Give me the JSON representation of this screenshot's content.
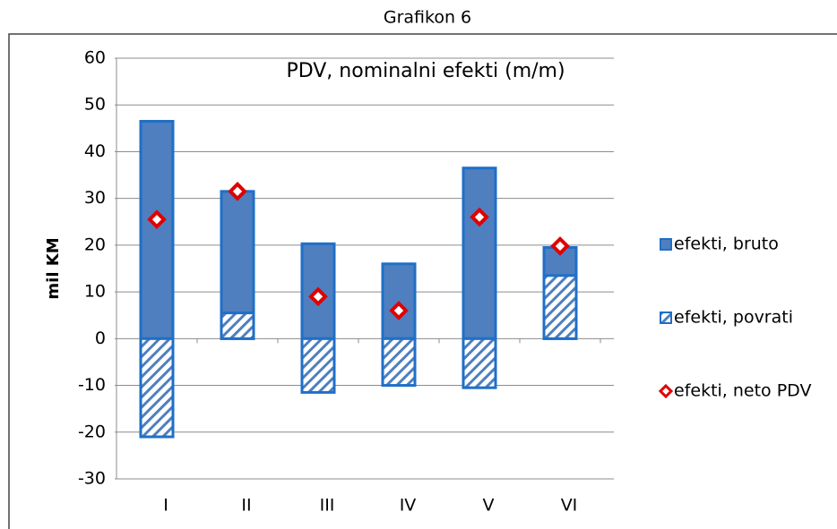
{
  "chart_data": {
    "type": "bar",
    "title": "Grafikon 6",
    "annotation": "PDV, nominalni efekti (m/m)",
    "y_label": "mil KM",
    "categories": [
      "I",
      "II",
      "III",
      "IV",
      "V",
      "VI"
    ],
    "series": [
      {
        "name": "efekti, bruto",
        "type": "bar",
        "color": "#4f7fbf",
        "values": [
          46.5,
          31.5,
          20.3,
          16,
          36.5,
          19.5
        ]
      },
      {
        "name": "efekti, povrati",
        "type": "bar",
        "pattern": "hatch",
        "color": "#4f7fbf",
        "values": [
          -21,
          5.5,
          -11.5,
          -10,
          -10.5,
          13.5
        ]
      },
      {
        "name": "efekti, neto PDV",
        "type": "marker",
        "marker": "diamond",
        "color": "#e00000",
        "values": [
          25.5,
          31.5,
          9,
          6,
          26,
          19.8
        ]
      }
    ],
    "ylim": [
      -30,
      60
    ],
    "yticks": [
      -30,
      -20,
      -10,
      0,
      10,
      20,
      30,
      40,
      50,
      60
    ],
    "grid": true
  }
}
